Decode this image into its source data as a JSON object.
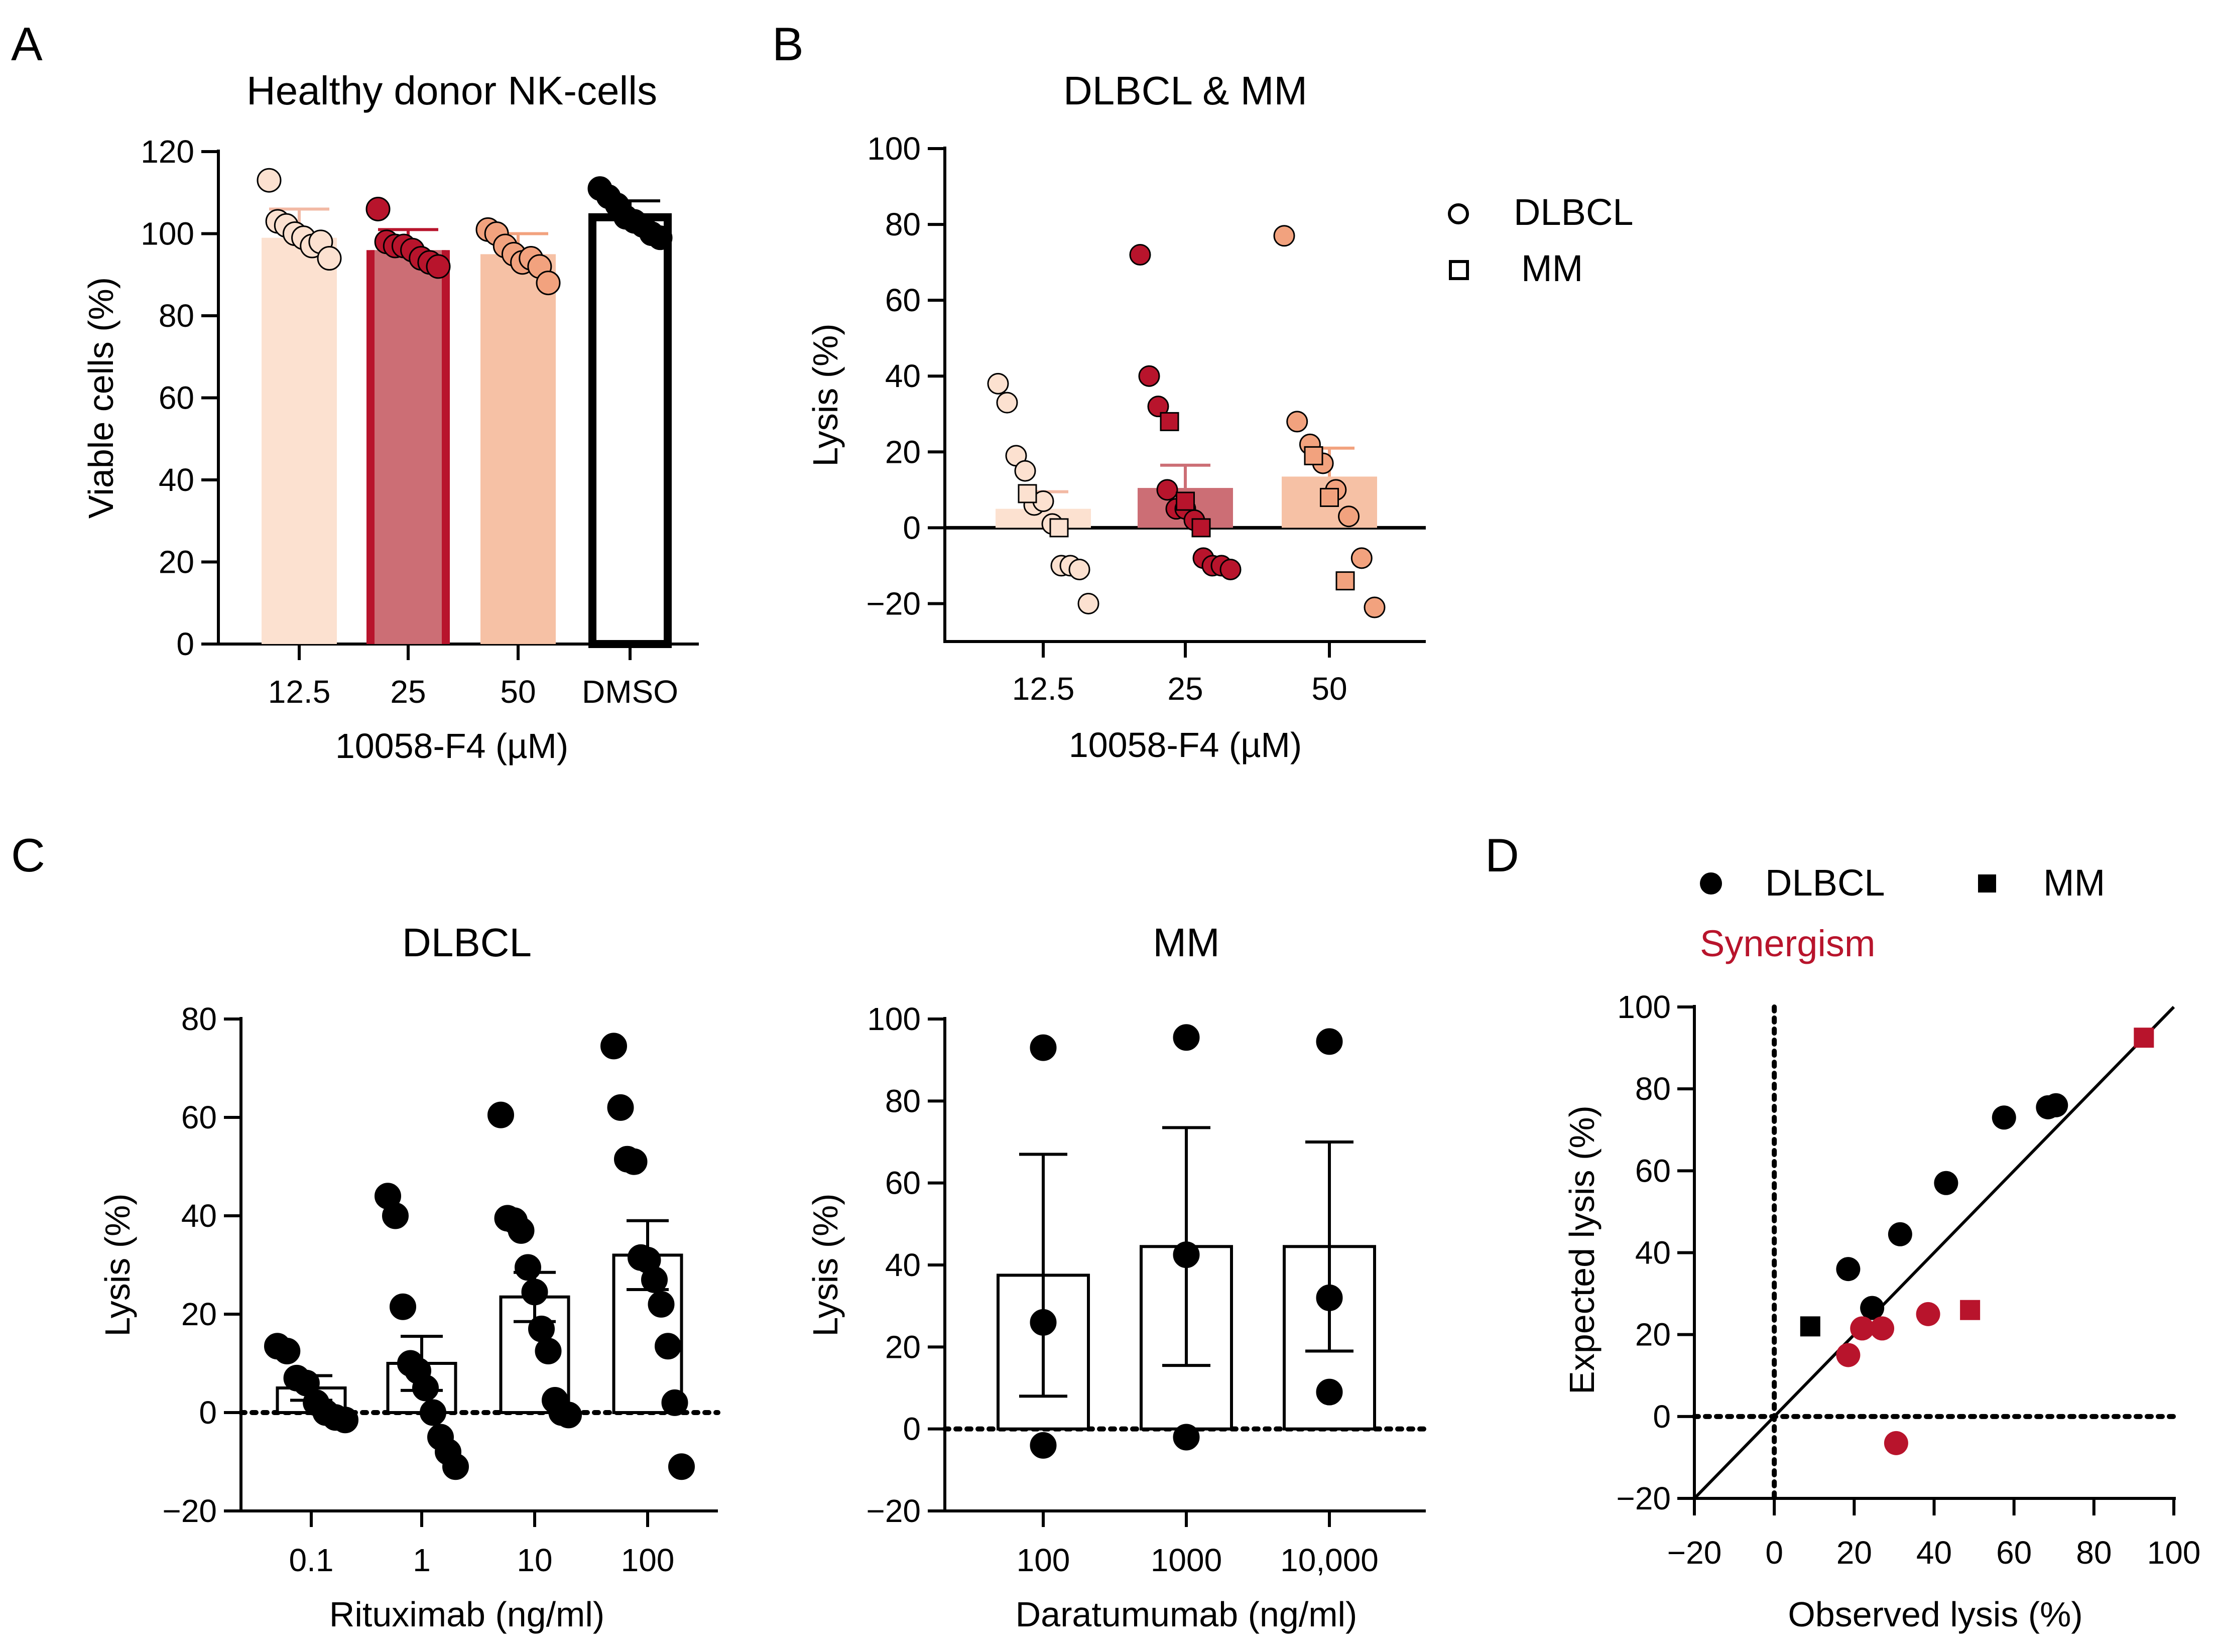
{
  "panels": {
    "a": "A",
    "b": "B",
    "c": "C",
    "d": "D"
  },
  "colors": {
    "c12": "#FCE1D0",
    "c25": "#CC6E75",
    "c50": "#F6C1A5",
    "c25dot": "#B8142C",
    "c50dot": "#F2A27E",
    "red": "#B8142C",
    "black": "#000000"
  },
  "chart_data": [
    {
      "id": "A",
      "type": "bar",
      "title": "Healthy donor NK-cells",
      "xlabel": "10058-F4 (µM)",
      "ylabel": "Viable cells (%)",
      "ylim": [
        0,
        120
      ],
      "yticks": [
        "0",
        "20",
        "40",
        "60",
        "80",
        "100",
        "120"
      ],
      "categories": [
        "12.5",
        "25",
        "50",
        "DMSO"
      ],
      "means": [
        99,
        96,
        95,
        104
      ],
      "sem": [
        7,
        5,
        5,
        4
      ],
      "points": [
        [
          113,
          103,
          102,
          100,
          99,
          97,
          98,
          94
        ],
        [
          106,
          98,
          97,
          97,
          96,
          94,
          93,
          92
        ],
        [
          101,
          100,
          97,
          95,
          93,
          94,
          92,
          88
        ],
        [
          111,
          109,
          107,
          104,
          103,
          102,
          100,
          99
        ]
      ]
    },
    {
      "id": "B",
      "type": "bar",
      "title": "DLBCL & MM",
      "xlabel": "10058-F4 (µM)",
      "ylabel": "Lysis (%)",
      "ylim": [
        -30,
        100
      ],
      "yticks": [
        "−20",
        "0",
        "20",
        "40",
        "60",
        "80",
        "100"
      ],
      "categories": [
        "12.5",
        "25",
        "50"
      ],
      "means": [
        5,
        10.5,
        13.5
      ],
      "sem": [
        4.5,
        6,
        7.5
      ],
      "legend": [
        "DLBCL",
        "MM"
      ],
      "circles": [
        [
          38,
          33,
          19,
          15,
          6,
          7,
          1,
          -10,
          -10,
          -11,
          -20
        ],
        [
          72,
          40,
          32,
          10,
          5,
          5,
          2,
          -8,
          -10,
          -10,
          -11
        ],
        [
          77,
          28,
          22,
          17,
          10,
          3,
          -8,
          -21
        ]
      ],
      "squares": [
        [
          9,
          0
        ],
        [
          28,
          7,
          0
        ],
        [
          19,
          8,
          -14
        ]
      ]
    },
    {
      "id": "C-DLBCL",
      "type": "bar",
      "title": "DLBCL",
      "xlabel": "Rituximab (ng/ml)",
      "ylabel": "Lysis (%)",
      "ylim": [
        -20,
        80
      ],
      "yticks": [
        "−20",
        "0",
        "20",
        "40",
        "60",
        "80"
      ],
      "categories": [
        "0.1",
        "1",
        "10",
        "100"
      ],
      "means": [
        5,
        10,
        23.5,
        32
      ],
      "sem": [
        2.5,
        5.5,
        5,
        7
      ],
      "points": [
        [
          13.5,
          12.5,
          7,
          6,
          2,
          0,
          -1,
          -1.5
        ],
        [
          44,
          40,
          21.5,
          10,
          8.5,
          5,
          0,
          -5,
          -8,
          -11
        ],
        [
          60.5,
          39.5,
          39,
          37,
          29.5,
          24.5,
          17,
          12.5,
          2.5,
          0,
          -0.5
        ],
        [
          74.5,
          62,
          51.5,
          51,
          31.5,
          31,
          27,
          22,
          13.5,
          2,
          -11
        ]
      ]
    },
    {
      "id": "C-MM",
      "type": "bar",
      "title": "MM",
      "xlabel": "Daratumumab (ng/ml)",
      "ylabel": "Lysis (%)",
      "ylim": [
        -20,
        100
      ],
      "yticks": [
        "−20",
        "0",
        "20",
        "40",
        "60",
        "80",
        "100"
      ],
      "categories": [
        "100",
        "1000",
        "10,000"
      ],
      "means": [
        37.5,
        44.5,
        44.5
      ],
      "sem": [
        29.5,
        29,
        25.5
      ],
      "points": [
        [
          93,
          26,
          -4
        ],
        [
          95.5,
          42.5,
          -2
        ],
        [
          94.5,
          32,
          9
        ]
      ]
    },
    {
      "id": "D",
      "type": "scatter",
      "xlabel": "Observed lysis (%)",
      "ylabel": "Expected lysis (%)",
      "xlim": [
        -20,
        100
      ],
      "ylim": [
        -20,
        100
      ],
      "xticks": [
        "−20",
        "0",
        "20",
        "40",
        "60",
        "80",
        "100"
      ],
      "yticks": [
        "−20",
        "0",
        "20",
        "40",
        "60",
        "80",
        "100"
      ],
      "legend": [
        "DLBCL",
        "MM"
      ],
      "annotation": "Synergism",
      "dlbcl_black": [
        [
          18.5,
          36
        ],
        [
          24.5,
          26.5
        ],
        [
          31.5,
          44.5
        ],
        [
          43,
          57
        ],
        [
          57.5,
          73
        ],
        [
          68.5,
          75.5
        ],
        [
          70.5,
          76
        ]
      ],
      "dlbcl_red": [
        [
          18.5,
          15
        ],
        [
          22,
          21.5
        ],
        [
          27,
          21.5
        ],
        [
          38.5,
          25
        ],
        [
          30.5,
          -6.5
        ]
      ],
      "mm_black": [
        [
          9,
          22
        ]
      ],
      "mm_red": [
        [
          49,
          26
        ],
        [
          92.5,
          92.5
        ]
      ]
    }
  ]
}
